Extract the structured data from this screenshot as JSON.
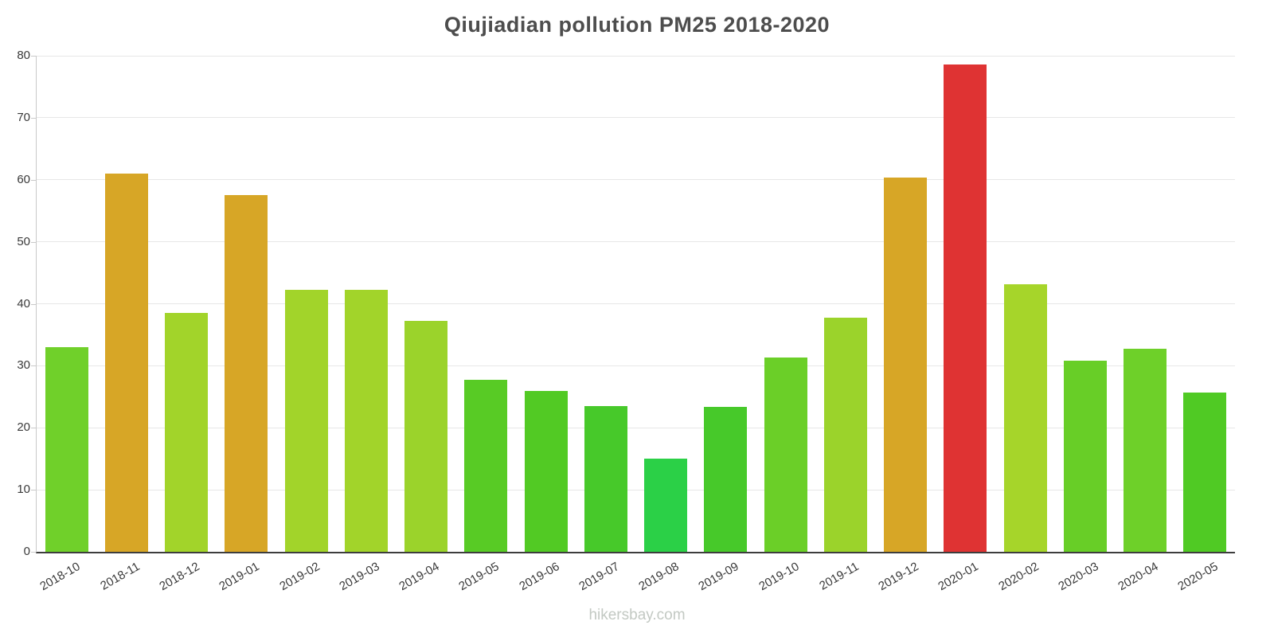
{
  "header": {
    "title": "Qiujiadian pollution PM25 2018-2020"
  },
  "footer": {
    "text": "hikersbay.com"
  },
  "chart_data": {
    "type": "bar",
    "title": "Qiujiadian pollution PM25 2018-2020",
    "xlabel": "",
    "ylabel": "",
    "ylim": [
      0,
      80
    ],
    "yticks": [
      0,
      10,
      20,
      30,
      40,
      50,
      60,
      70,
      80
    ],
    "grid": true,
    "legend": "none",
    "watermark": "hikersbay.com",
    "categories": [
      "2018-10",
      "2018-11",
      "2018-12",
      "2019-01",
      "2019-02",
      "2019-03",
      "2019-04",
      "2019-05",
      "2019-06",
      "2019-07",
      "2019-08",
      "2019-09",
      "2019-10",
      "2019-11",
      "2019-12",
      "2020-01",
      "2020-02",
      "2020-03",
      "2020-04",
      "2020-05"
    ],
    "values": [
      33,
      61,
      38.5,
      57.5,
      42.2,
      42.3,
      37.2,
      27.7,
      26,
      23.5,
      15,
      23.4,
      31.3,
      37.7,
      60.4,
      78.6,
      43.2,
      30.8,
      32.7,
      25.7
    ],
    "colors": [
      "#70d02a",
      "#d7a626",
      "#a2d42a",
      "#d7a626",
      "#a2d42a",
      "#a2d42a",
      "#9bd32b",
      "#58cb25",
      "#52ca24",
      "#47c92a",
      "#2bd047",
      "#47c92a",
      "#6bcf28",
      "#9bd32b",
      "#d7a626",
      "#df3333",
      "#a6d52a",
      "#68ce27",
      "#6ed029",
      "#50ca24"
    ]
  }
}
